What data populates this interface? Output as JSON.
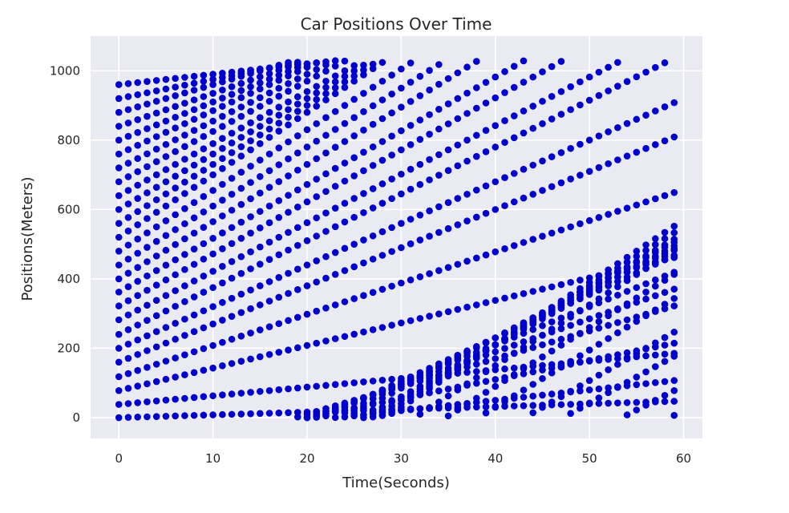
{
  "chart_data": {
    "type": "scatter",
    "title": "Car Positions Over Time",
    "xlabel": "Time(Seconds)",
    "ylabel": "Positions(Meters)",
    "xlim": [
      -3,
      62
    ],
    "ylim": [
      -60,
      1100
    ],
    "xticks": [
      0,
      10,
      20,
      30,
      40,
      50,
      60
    ],
    "yticks": [
      0,
      200,
      400,
      600,
      800,
      1000
    ],
    "grid": true,
    "background_color": "#eaeaf2",
    "marker_color": "#0000cd",
    "time_steps": [
      0,
      1,
      2,
      3,
      4,
      5,
      6,
      7,
      8,
      9,
      10,
      11,
      12,
      13,
      14,
      15,
      16,
      17,
      18,
      19,
      20,
      21,
      22,
      23,
      24,
      25,
      26,
      27,
      28,
      29,
      30,
      31,
      32,
      33,
      34,
      35,
      36,
      37,
      38,
      39,
      40,
      41,
      42,
      43,
      44,
      45,
      46,
      47,
      48,
      49,
      50,
      51,
      52,
      53,
      54,
      55,
      56,
      57,
      58,
      59
    ],
    "series": [
      {
        "initial_positions": [
          0,
          38,
          78,
          118,
          160,
          200,
          240,
          282,
          322,
          362,
          400,
          440,
          480,
          520,
          560,
          600,
          640,
          680,
          720,
          760,
          800,
          840,
          880,
          920,
          960
        ],
        "speeds": [
          0.8,
          2.5,
          6.5,
          9.0,
          11.0,
          12.0,
          13.5,
          14.0,
          15.0,
          15.5,
          16.5,
          17.0,
          17.5,
          18.0,
          17.0,
          16.0,
          15.0,
          14.5,
          13.5,
          12.5,
          11.0,
          9.5,
          8.0,
          5.5,
          3.0
        ],
        "position_min": 0,
        "position_max": 1030
      }
    ]
  }
}
